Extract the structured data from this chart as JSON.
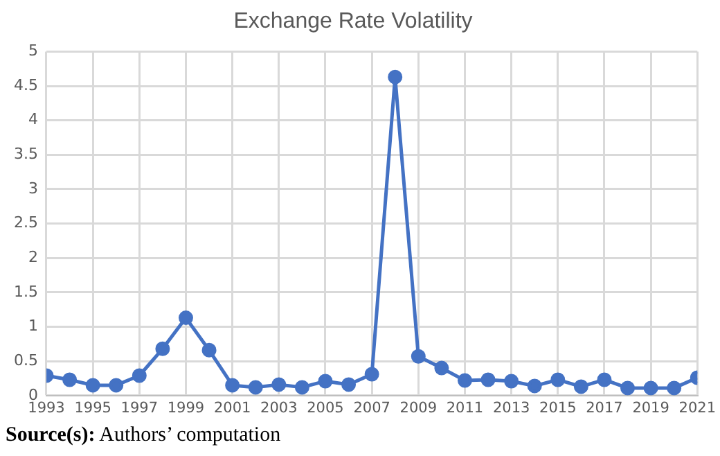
{
  "chart_data": {
    "type": "line",
    "title": "Exchange Rate Volatility",
    "x": [
      1993,
      1994,
      1995,
      1996,
      1997,
      1998,
      1999,
      2000,
      2001,
      2002,
      2003,
      2004,
      2005,
      2006,
      2007,
      2008,
      2009,
      2010,
      2011,
      2012,
      2013,
      2014,
      2015,
      2016,
      2017,
      2018,
      2019,
      2020,
      2021
    ],
    "series": [
      {
        "color": "#4472c4",
        "values": [
          0.29,
          0.23,
          0.15,
          0.15,
          0.29,
          0.68,
          1.13,
          0.66,
          0.15,
          0.12,
          0.16,
          0.12,
          0.21,
          0.16,
          0.31,
          4.63,
          0.57,
          0.4,
          0.22,
          0.23,
          0.21,
          0.14,
          0.23,
          0.13,
          0.23,
          0.11,
          0.11,
          0.11,
          0.26
        ]
      }
    ],
    "xlim": [
      1993,
      2021
    ],
    "xticks": [
      1993,
      1995,
      1997,
      1999,
      2001,
      2003,
      2005,
      2007,
      2009,
      2011,
      2013,
      2015,
      2017,
      2019,
      2021
    ],
    "ylim": [
      0,
      5
    ],
    "yticks": [
      0,
      0.5,
      1,
      1.5,
      2,
      2.5,
      3,
      3.5,
      4,
      4.5,
      5
    ],
    "grid": true,
    "marker": "circle",
    "line_style": "solid",
    "annotations": [
      "Source(s): Authors’ computation"
    ]
  }
}
